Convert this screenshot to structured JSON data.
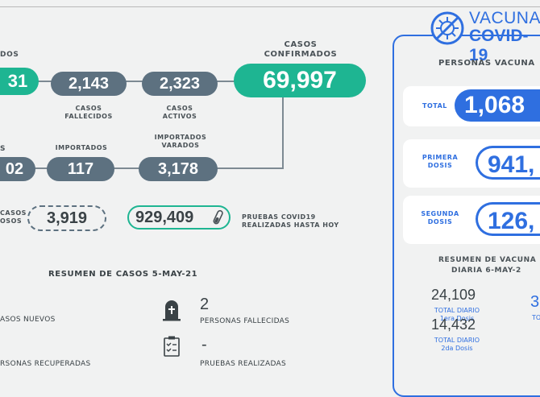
{
  "cases": {
    "truncated_label": "DOS",
    "truncated_value": "31",
    "deaths": {
      "value": "2,143",
      "label_line1": "CASOS",
      "label_line2": "FALLECIDOS"
    },
    "active": {
      "value": "2,323",
      "label_line1": "CASOS",
      "label_line2": "ACTIVOS"
    },
    "confirmed": {
      "value": "69,997",
      "label_line1": "CASOS",
      "label_line2": "CONFIRMADOS"
    },
    "row2_left_label": "S",
    "row2_left_value": "02",
    "imported": {
      "label": "IMPORTADOS",
      "value": "117"
    },
    "imported_stranded": {
      "label_line1": "IMPORTADOS",
      "label_line2": "VARADOS",
      "value": "3,178"
    },
    "suspicious": {
      "label_line1": "CASOS",
      "label_line2": "OSOS",
      "value": "3,919"
    },
    "tests": {
      "value": "929,409",
      "label_line1": "PRUEBAS COVID19",
      "label_line2": "REALIZADAS HASTA HOY"
    }
  },
  "summary": {
    "title": "RESUMEN DE CASOS 5-MAY-21",
    "new_cases_label": "ASOS NUEVOS",
    "recovered_label": "RSONAS RECUPERADAS",
    "deceased": {
      "value": "2",
      "label": "PERSONAS FALLECIDAS"
    },
    "tests_done": {
      "value": "-",
      "label": "PRUEBAS REALIZADAS"
    }
  },
  "vaccine": {
    "title_line1": "VACUNA",
    "title_line2": "COVID-19",
    "people_header": "PERSONAS VACUNA",
    "total": {
      "label": "TOTAL",
      "value": "1,068"
    },
    "first_dose": {
      "label_line1": "PRIMERA",
      "label_line2": "DOSIS",
      "value": "941,"
    },
    "second_dose": {
      "label_line1": "SEGUNDA",
      "label_line2": "DOSIS",
      "value": "126,"
    },
    "daily_title_line1": "RESUMEN DE VACUNA",
    "daily_title_line2": "DIARIA 6-MAY-2",
    "daily_first": {
      "value": "24,109",
      "label_line1": "TOTAL DIARIO",
      "label_line2": "1era Dosis"
    },
    "daily_second": {
      "value": "14,432",
      "label_line1": "TOTAL DIARIO",
      "label_line2": "2da Dosis"
    },
    "daily_total_partial": {
      "value": "3",
      "label": "TO"
    }
  },
  "colors": {
    "teal": "#1eb592",
    "slate": "#5d7180",
    "blue": "#2f6fe0"
  },
  "icons": [
    "tombstone-icon",
    "clipboard-icon",
    "test-tube-icon",
    "virus-icon"
  ]
}
